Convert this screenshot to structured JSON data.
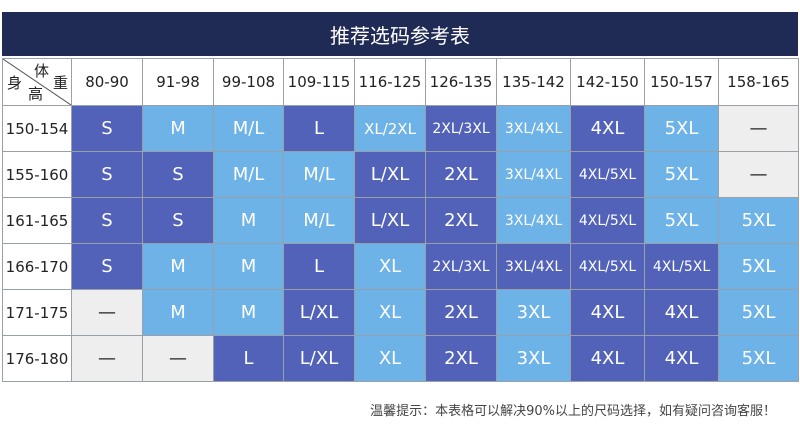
{
  "title": "推荐选码参考表",
  "corner": {
    "height": "身",
    "weight": "体",
    "weight2": "重",
    "height2": "高"
  },
  "weight_columns": [
    "80-90",
    "91-98",
    "99-108",
    "109-115",
    "116-125",
    "126-135",
    "135-142",
    "142-150",
    "150-157",
    "158-165"
  ],
  "rows": [
    {
      "height": "150-154",
      "cells": [
        {
          "v": "S",
          "t": "dark"
        },
        {
          "v": "M",
          "t": "light"
        },
        {
          "v": "M/L",
          "t": "light"
        },
        {
          "v": "L",
          "t": "dark"
        },
        {
          "v": "XL/2XL",
          "t": "light"
        },
        {
          "v": "2XL/3XL",
          "t": "dark"
        },
        {
          "v": "3XL/4XL",
          "t": "light"
        },
        {
          "v": "4XL",
          "t": "dark"
        },
        {
          "v": "5XL",
          "t": "light"
        },
        {
          "v": "—",
          "t": "empty"
        }
      ]
    },
    {
      "height": "155-160",
      "cells": [
        {
          "v": "S",
          "t": "dark"
        },
        {
          "v": "S",
          "t": "dark"
        },
        {
          "v": "M/L",
          "t": "light"
        },
        {
          "v": "M/L",
          "t": "light"
        },
        {
          "v": "L/XL",
          "t": "dark"
        },
        {
          "v": "2XL",
          "t": "dark"
        },
        {
          "v": "3XL/4XL",
          "t": "light"
        },
        {
          "v": "4XL/5XL",
          "t": "dark"
        },
        {
          "v": "5XL",
          "t": "light"
        },
        {
          "v": "—",
          "t": "empty"
        }
      ]
    },
    {
      "height": "161-165",
      "cells": [
        {
          "v": "S",
          "t": "dark"
        },
        {
          "v": "S",
          "t": "dark"
        },
        {
          "v": "M",
          "t": "light"
        },
        {
          "v": "M/L",
          "t": "light"
        },
        {
          "v": "L/XL",
          "t": "dark"
        },
        {
          "v": "2XL",
          "t": "dark"
        },
        {
          "v": "3XL/4XL",
          "t": "light"
        },
        {
          "v": "4XL/5XL",
          "t": "dark"
        },
        {
          "v": "5XL",
          "t": "light"
        },
        {
          "v": "5XL",
          "t": "light"
        }
      ]
    },
    {
      "height": "166-170",
      "cells": [
        {
          "v": "S",
          "t": "dark"
        },
        {
          "v": "M",
          "t": "light"
        },
        {
          "v": "M",
          "t": "light"
        },
        {
          "v": "L",
          "t": "dark"
        },
        {
          "v": "XL",
          "t": "light"
        },
        {
          "v": "2XL/3XL",
          "t": "dark"
        },
        {
          "v": "3XL/4XL",
          "t": "dark"
        },
        {
          "v": "4XL/5XL",
          "t": "dark"
        },
        {
          "v": "4XL/5XL",
          "t": "dark"
        },
        {
          "v": "5XL",
          "t": "light"
        }
      ]
    },
    {
      "height": "171-175",
      "cells": [
        {
          "v": "—",
          "t": "empty"
        },
        {
          "v": "M",
          "t": "light"
        },
        {
          "v": "M",
          "t": "light"
        },
        {
          "v": "L/XL",
          "t": "dark"
        },
        {
          "v": "XL",
          "t": "light"
        },
        {
          "v": "2XL",
          "t": "dark"
        },
        {
          "v": "3XL",
          "t": "light"
        },
        {
          "v": "4XL",
          "t": "dark"
        },
        {
          "v": "4XL",
          "t": "dark"
        },
        {
          "v": "5XL",
          "t": "light"
        }
      ]
    },
    {
      "height": "176-180",
      "cells": [
        {
          "v": "—",
          "t": "empty"
        },
        {
          "v": "—",
          "t": "empty"
        },
        {
          "v": "L",
          "t": "dark"
        },
        {
          "v": "L/XL",
          "t": "dark"
        },
        {
          "v": "XL",
          "t": "light"
        },
        {
          "v": "2XL",
          "t": "dark"
        },
        {
          "v": "3XL",
          "t": "light"
        },
        {
          "v": "4XL",
          "t": "dark"
        },
        {
          "v": "4XL",
          "t": "dark"
        },
        {
          "v": "5XL",
          "t": "light"
        }
      ]
    }
  ],
  "footnote": "温馨提示：本表格可以解决90%以上的尺码选择，如有疑问咨询客服！",
  "colors": {
    "title_bg": "#1f2a55",
    "dark_cell": "#5262b9",
    "light_cell": "#6eb3e8",
    "empty_cell": "#eeeeee"
  }
}
